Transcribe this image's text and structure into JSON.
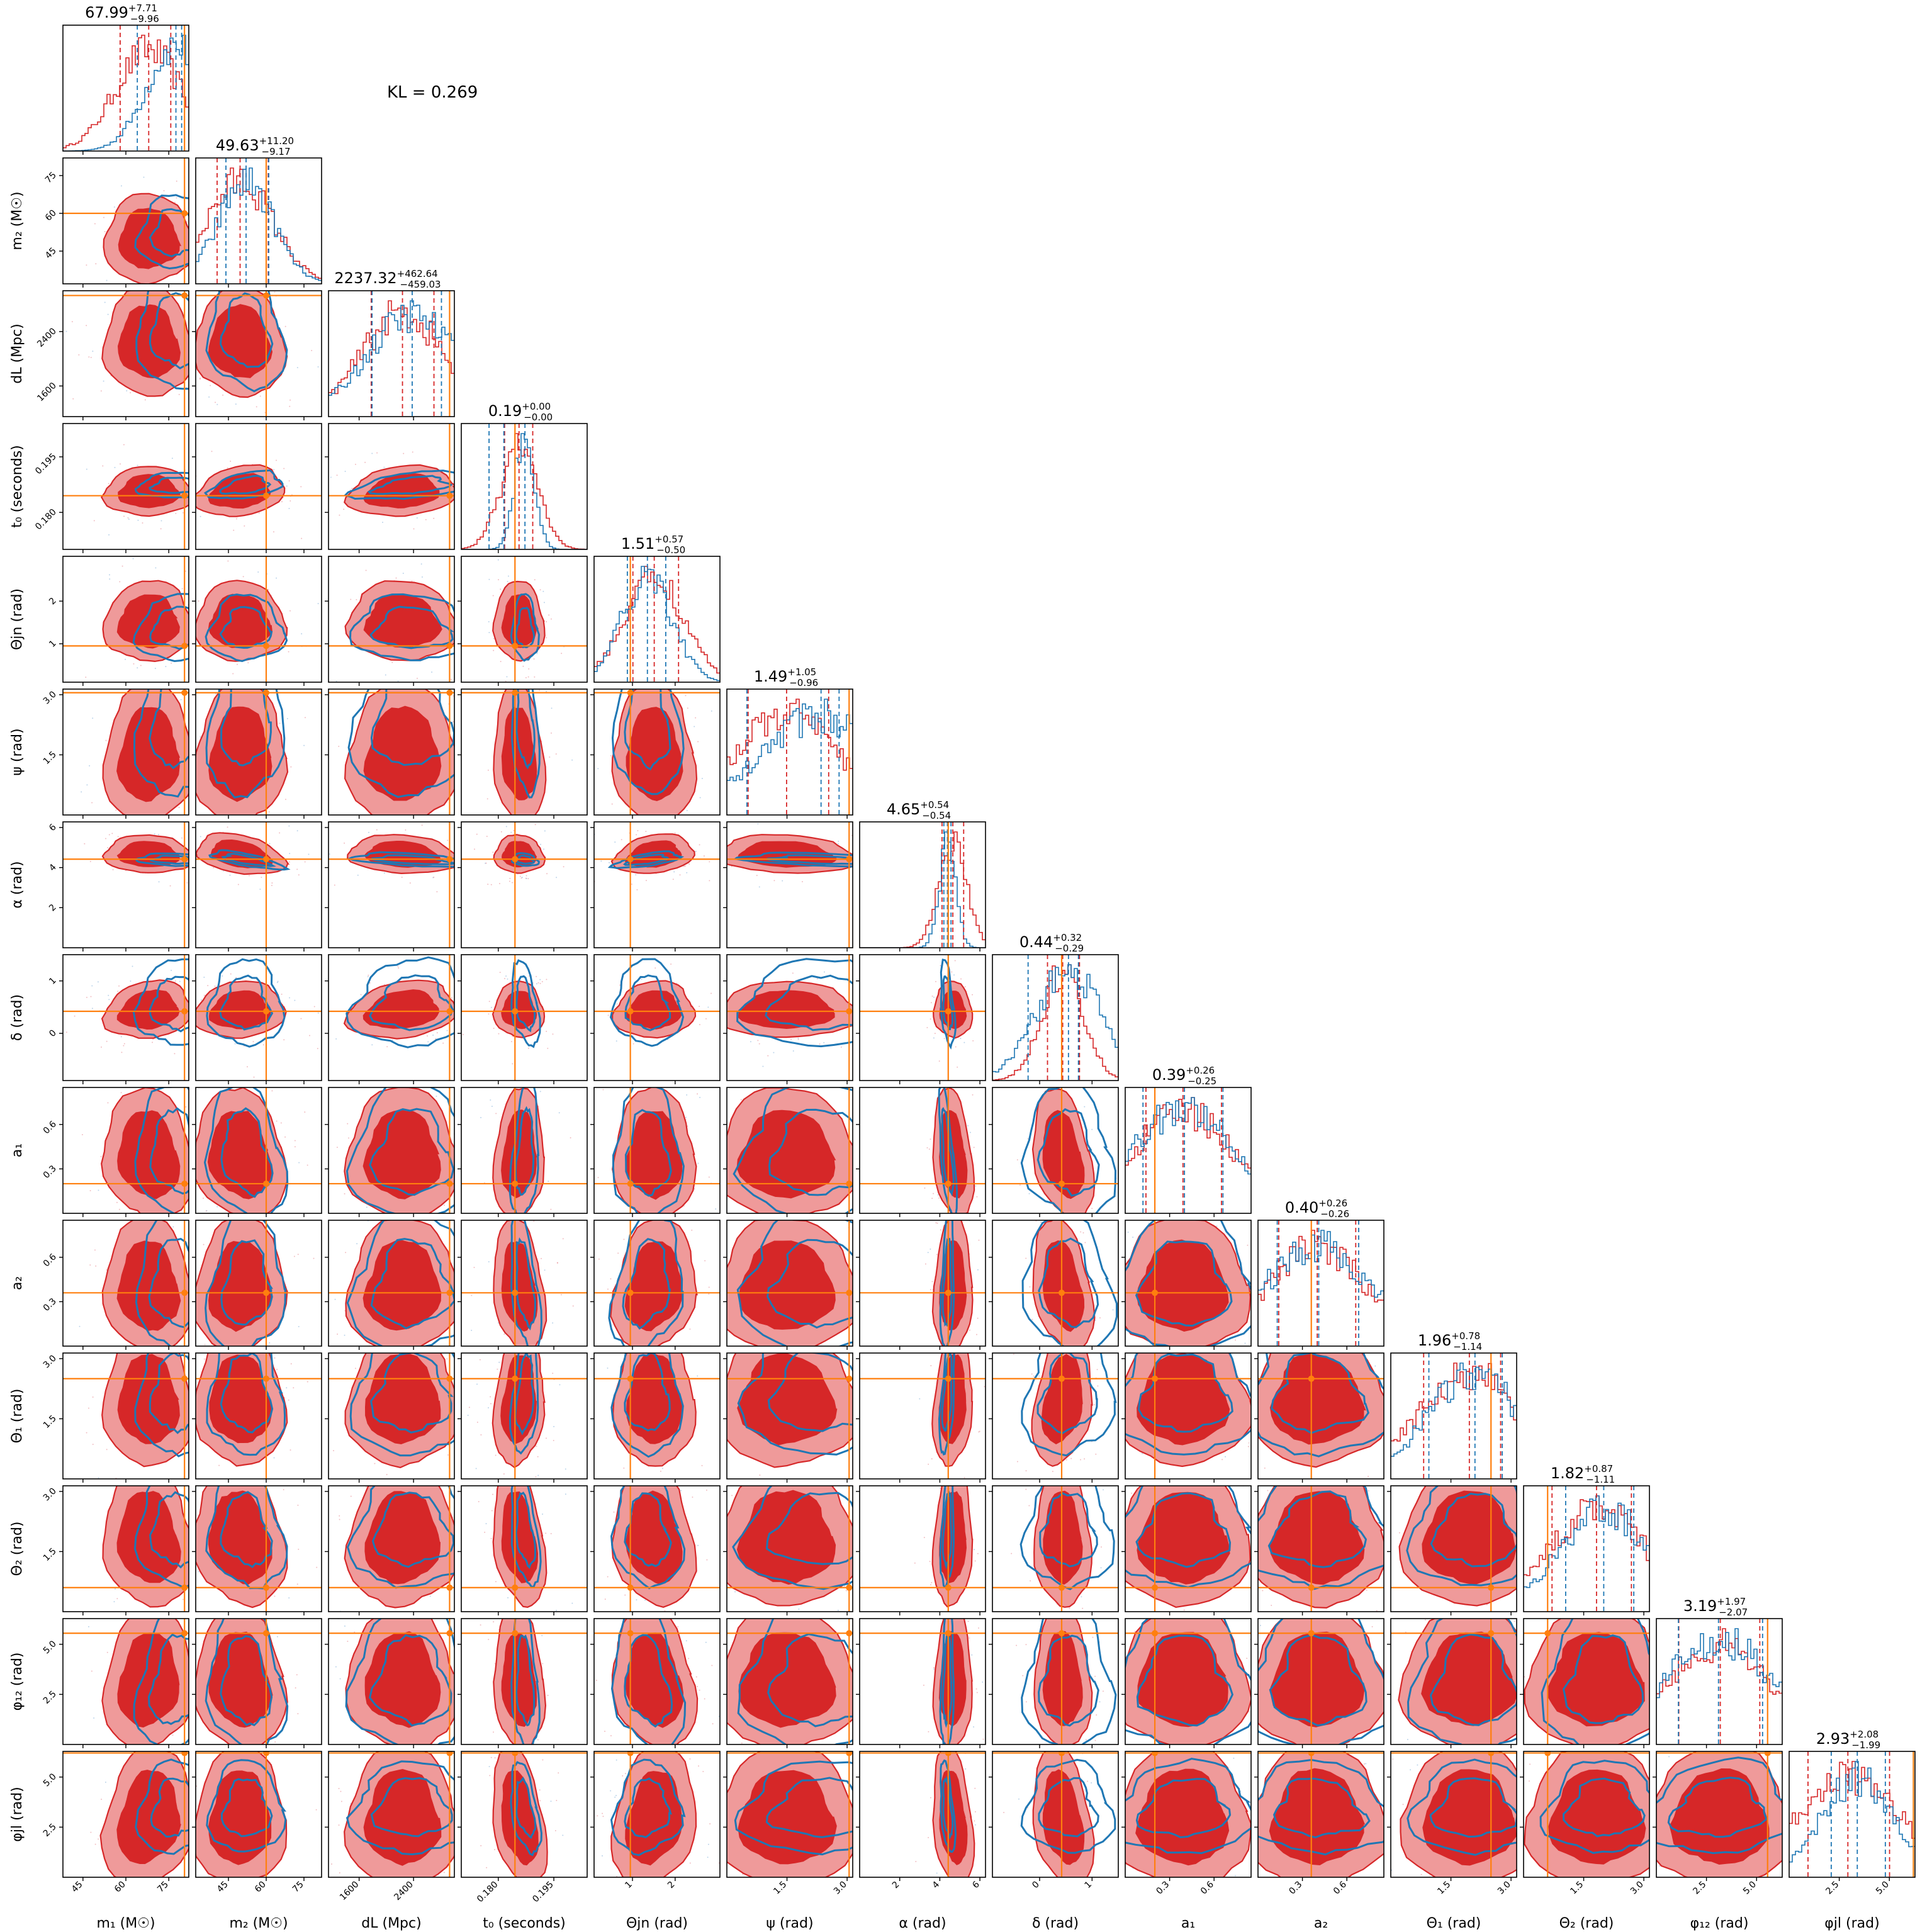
{
  "chart_data": {
    "type": "corner",
    "annotation": "KL = 0.269",
    "colors": {
      "posterior_a": "#d62728",
      "posterior_b": "#1f77b4",
      "injected": "#ff7f0e"
    },
    "parameters": [
      {
        "label": "m₁ (M☉)",
        "range": [
          38,
          82
        ],
        "ticks": [
          45,
          60,
          75
        ],
        "tick_labels": [
          "45",
          "60",
          "75"
        ],
        "injected": 80.5,
        "title": {
          "value": "67.99",
          "plus": "+7.71",
          "minus": "−9.96"
        },
        "quantiles_red": [
          58.0,
          67.99,
          75.7
        ],
        "quantiles_blue": [
          64.0,
          77.5,
          79.5
        ]
      },
      {
        "label": "m₂ (M☉)",
        "range": [
          32,
          82
        ],
        "ticks": [
          45,
          60,
          75
        ],
        "tick_labels": [
          "45",
          "60",
          "75"
        ],
        "injected": 60.0,
        "title": {
          "value": "49.63",
          "plus": "+11.20",
          "minus": "−9.17"
        },
        "quantiles_red": [
          40.5,
          49.63,
          60.8
        ],
        "quantiles_blue": [
          44.0,
          52.0,
          61.0
        ]
      },
      {
        "label": "dL (Mpc)",
        "range": [
          1150,
          3000
        ],
        "ticks": [
          1600,
          2400
        ],
        "tick_labels": [
          "1600",
          "2400"
        ],
        "injected": 2930,
        "title": {
          "value": "2237.32",
          "plus": "+462.64",
          "minus": "−459.03"
        },
        "quantiles_red": [
          1778,
          2237.32,
          2700
        ],
        "quantiles_blue": [
          1790,
          2380,
          2810
        ]
      },
      {
        "label": "t₀ (seconds)",
        "range": [
          0.17,
          0.204
        ],
        "ticks": [
          0.18,
          0.195
        ],
        "tick_labels": [
          "0.180",
          "0.195"
        ],
        "injected": 0.1845,
        "title": {
          "value": "0.19",
          "plus": "+0.00",
          "minus": "−0.00"
        },
        "quantiles_red": [
          0.1817,
          0.1856,
          0.1893
        ],
        "quantiles_blue": [
          0.1775,
          0.1872,
          0.1815
        ]
      },
      {
        "label": "Θjn (rad)",
        "range": [
          0.1,
          3.05
        ],
        "ticks": [
          1,
          2
        ],
        "tick_labels": [
          "1",
          "2"
        ],
        "injected": 0.95,
        "title": {
          "value": "1.51",
          "plus": "+0.57",
          "minus": "−0.50"
        },
        "quantiles_red": [
          1.01,
          1.51,
          2.08
        ],
        "quantiles_blue": [
          0.88,
          1.35,
          1.78
        ]
      },
      {
        "label": "ψ (rad)",
        "range": [
          0,
          3.14
        ],
        "ticks": [
          1.5,
          3.0
        ],
        "tick_labels": [
          "1.5",
          "3.0"
        ],
        "injected": 3.05,
        "title": {
          "value": "1.49",
          "plus": "+1.05",
          "minus": "−0.96"
        },
        "quantiles_red": [
          0.53,
          1.49,
          2.54
        ],
        "quantiles_blue": [
          0.5,
          2.35,
          2.8
        ]
      },
      {
        "label": "α (rad)",
        "range": [
          0,
          6.28
        ],
        "ticks": [
          2,
          4,
          6
        ],
        "tick_labels": [
          "2",
          "4",
          "6"
        ],
        "injected": 4.42,
        "title": {
          "value": "4.65",
          "plus": "+0.54",
          "minus": "−0.54"
        },
        "quantiles_red": [
          4.11,
          4.65,
          5.19
        ],
        "quantiles_blue": [
          4.2,
          4.38,
          4.56
        ]
      },
      {
        "label": "δ (rad)",
        "range": [
          -0.9,
          1.5
        ],
        "ticks": [
          0,
          1
        ],
        "tick_labels": [
          "0",
          "1"
        ],
        "injected": 0.42,
        "title": {
          "value": "0.44",
          "plus": "+0.32",
          "minus": "−0.29"
        },
        "quantiles_red": [
          0.15,
          0.44,
          0.76
        ],
        "quantiles_blue": [
          -0.22,
          0.55,
          0.74
        ]
      },
      {
        "label": "a₁",
        "range": [
          0,
          0.85
        ],
        "ticks": [
          0.3,
          0.6
        ],
        "tick_labels": [
          "0.3",
          "0.6"
        ],
        "injected": 0.2,
        "title": {
          "value": "0.39",
          "plus": "+0.26",
          "minus": "−0.25"
        },
        "quantiles_red": [
          0.14,
          0.39,
          0.65
        ],
        "quantiles_blue": [
          0.12,
          0.4,
          0.66
        ]
      },
      {
        "label": "a₂",
        "range": [
          0,
          0.85
        ],
        "ticks": [
          0.3,
          0.6
        ],
        "tick_labels": [
          "0.3",
          "0.6"
        ],
        "injected": 0.36,
        "title": {
          "value": "0.40",
          "plus": "+0.26",
          "minus": "−0.26"
        },
        "quantiles_red": [
          0.14,
          0.4,
          0.66
        ],
        "quantiles_blue": [
          0.13,
          0.41,
          0.68
        ]
      },
      {
        "label": "Θ₁ (rad)",
        "range": [
          0,
          3.14
        ],
        "ticks": [
          1.5,
          3.0
        ],
        "tick_labels": [
          "1.5",
          "3.0"
        ],
        "injected": 2.5,
        "title": {
          "value": "1.96",
          "plus": "+0.78",
          "minus": "−1.14"
        },
        "quantiles_red": [
          0.82,
          1.96,
          2.74
        ],
        "quantiles_blue": [
          0.95,
          2.1,
          2.78
        ]
      },
      {
        "label": "Θ₂ (rad)",
        "range": [
          0,
          3.14
        ],
        "ticks": [
          1.5,
          3.0
        ],
        "tick_labels": [
          "1.5",
          "3.0"
        ],
        "injected": 0.6,
        "title": {
          "value": "1.82",
          "plus": "+0.87",
          "minus": "−1.11"
        },
        "quantiles_red": [
          0.71,
          1.82,
          2.69
        ],
        "quantiles_blue": [
          1.05,
          2.0,
          2.75
        ]
      },
      {
        "label": "φ₁₂ (rad)",
        "range": [
          0,
          6.28
        ],
        "ticks": [
          2.5,
          5.0
        ],
        "tick_labels": [
          "2.5",
          "5.0"
        ],
        "injected": 5.55,
        "title": {
          "value": "3.19",
          "plus": "+1.97",
          "minus": "−2.07"
        },
        "quantiles_red": [
          1.12,
          3.19,
          5.16
        ],
        "quantiles_blue": [
          1.1,
          3.1,
          5.3
        ]
      },
      {
        "label": "φjl (rad)",
        "range": [
          0,
          6.28
        ],
        "ticks": [
          2.5,
          5.0
        ],
        "tick_labels": [
          "2.5",
          "5.0"
        ],
        "injected": 6.2,
        "title": {
          "value": "2.93",
          "plus": "+2.08",
          "minus": "−1.99"
        },
        "quantiles_red": [
          0.94,
          2.93,
          5.01
        ],
        "quantiles_blue": [
          2.1,
          3.4,
          4.8
        ]
      }
    ]
  }
}
